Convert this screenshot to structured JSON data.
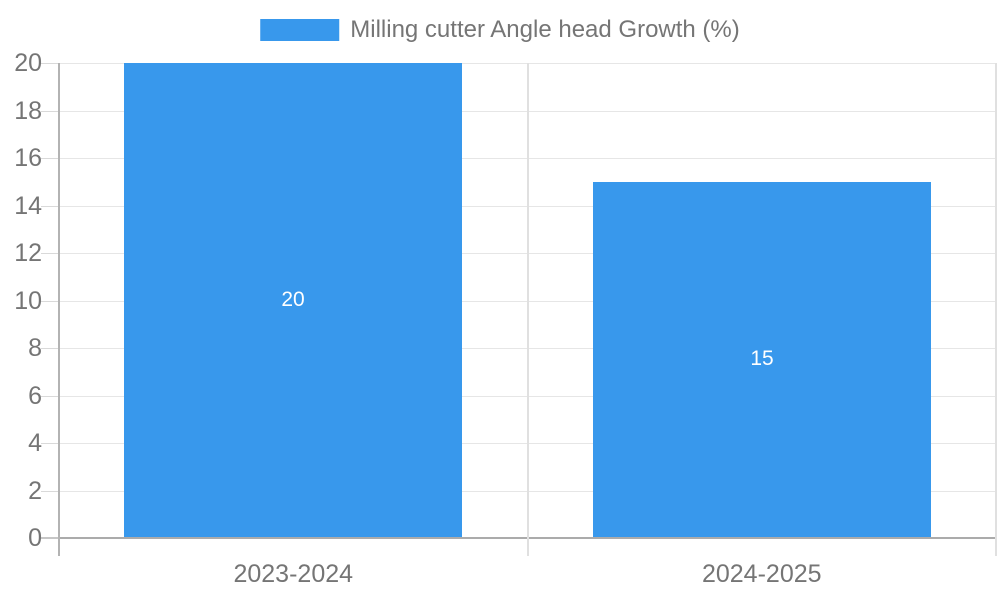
{
  "legend": {
    "label": "Milling cutter Angle head Growth (%)"
  },
  "colors": {
    "bar": "#3898ec",
    "grid": "#e6e6e6",
    "baseline": "#ababab",
    "axis_line": "#b3b3b3",
    "separator_line": "#e0e0e0",
    "tick_text": "#757575",
    "bar_label_text": "#ffffff"
  },
  "chart_data": {
    "type": "bar",
    "title": "Milling cutter Angle head Growth (%)",
    "series_name": "Milling cutter Angle head Growth (%)",
    "categories": [
      "2023-2024",
      "2024-2025"
    ],
    "values": [
      20,
      15
    ],
    "bar_labels": [
      "20",
      "15"
    ],
    "y_tick_labels": [
      "0",
      "2",
      "4",
      "6",
      "8",
      "10",
      "12",
      "14",
      "16",
      "18",
      "20"
    ],
    "xlabel": "",
    "ylabel": "",
    "ylim": [
      0,
      20
    ],
    "ytick_step": 2,
    "grid": true,
    "legend_position": "top"
  }
}
